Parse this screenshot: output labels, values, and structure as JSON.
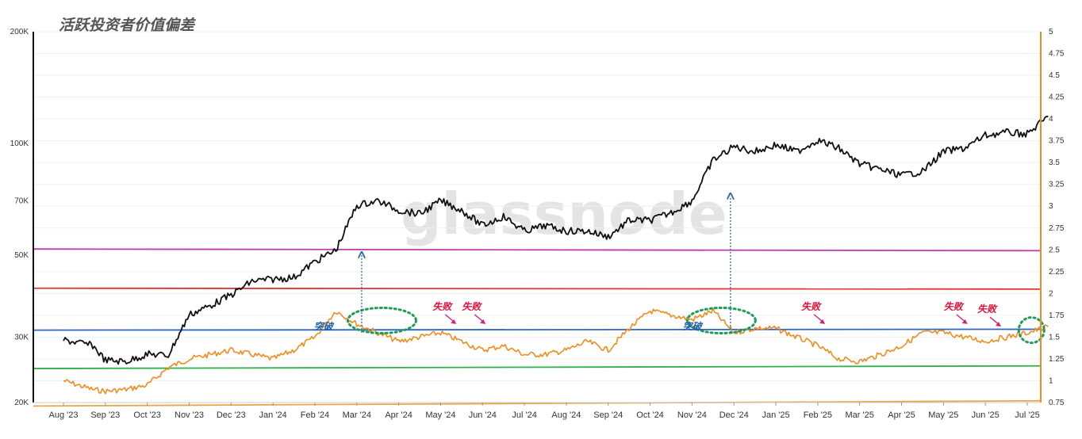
{
  "title": "活跃投资者价值偏差",
  "watermark": "glassnode",
  "chart_data": {
    "type": "line",
    "x_labels": [
      "Aug '23",
      "Sep '23",
      "Oct '23",
      "Nov '23",
      "Dec '23",
      "Jan '24",
      "Feb '24",
      "Mar '24",
      "Apr '24",
      "May '24",
      "Jun '24",
      "Jul '24",
      "Aug '24",
      "Sep '24",
      "Oct '24",
      "Nov '24",
      "Dec '24",
      "Jan '25",
      "Feb '25",
      "Mar '25",
      "Apr '25",
      "May '25",
      "Jun '25",
      "Jul '25"
    ],
    "y_left": {
      "scale": "log",
      "ticks": [
        20000,
        30000,
        50000,
        70000,
        100000,
        200000
      ],
      "tick_labels": [
        "20K",
        "30K",
        "50K",
        "70K",
        "100K",
        "200K"
      ]
    },
    "y_right": {
      "scale": "linear",
      "range": [
        0.75,
        5
      ],
      "ticks": [
        0.75,
        1,
        1.25,
        1.5,
        1.75,
        2,
        2.25,
        2.5,
        2.75,
        3,
        3.25,
        3.5,
        3.75,
        4,
        4.25,
        4.5,
        4.75,
        5
      ],
      "tick_labels": [
        "0.75",
        "1",
        "1.25",
        "1.5",
        "1.75",
        "2",
        "2.25",
        "2.5",
        "2.75",
        "3",
        "3.25",
        "3.5",
        "3.75",
        "4",
        "4.25",
        "4.5",
        "4.75",
        "5"
      ]
    },
    "price": {
      "axis": "left",
      "color": "#111111",
      "x": [
        0,
        0.7,
        1,
        1.5,
        2,
        2.5,
        3,
        3.5,
        4,
        4.5,
        5,
        5.5,
        6,
        6.5,
        7,
        7.5,
        8,
        8.5,
        9,
        9.5,
        10,
        10.5,
        11,
        11.5,
        12,
        12.5,
        13,
        13.5,
        14,
        14.5,
        15,
        15.5,
        16,
        16.5,
        17,
        17.5,
        18,
        18.5,
        19,
        19.5,
        20,
        20.5,
        21,
        21.5,
        22,
        22.5,
        23,
        23.5
      ],
      "values": [
        29500,
        28500,
        26000,
        25800,
        27000,
        26800,
        34500,
        36500,
        39000,
        42500,
        43000,
        43500,
        48000,
        51500,
        68000,
        70000,
        66000,
        64500,
        70000,
        66000,
        60000,
        63500,
        58000,
        60000,
        58000,
        58000,
        56000,
        62000,
        62000,
        65000,
        70000,
        90000,
        98000,
        95000,
        99000,
        95000,
        102000,
        97000,
        88000,
        85000,
        82000,
        84000,
        95000,
        97000,
        105000,
        107000,
        106000,
        118000
      ]
    },
    "ratio": {
      "axis": "right",
      "color": "#f28c1e",
      "x": [
        0,
        0.7,
        1,
        1.5,
        2,
        2.5,
        3,
        3.5,
        4,
        4.5,
        5,
        5.5,
        6,
        6.5,
        7,
        7.5,
        8,
        8.5,
        9,
        9.5,
        10,
        10.5,
        11,
        11.5,
        12,
        12.5,
        13,
        13.5,
        14,
        14.5,
        15,
        15.5,
        16,
        16.5,
        17,
        17.5,
        18,
        18.5,
        19,
        19.5,
        20,
        20.5,
        21,
        21.5,
        22,
        22.5,
        23,
        23.5
      ],
      "values": [
        1.0,
        0.9,
        0.88,
        0.9,
        0.95,
        1.15,
        1.25,
        1.3,
        1.35,
        1.3,
        1.25,
        1.35,
        1.5,
        1.8,
        1.65,
        1.55,
        1.45,
        1.5,
        1.55,
        1.45,
        1.35,
        1.4,
        1.3,
        1.3,
        1.35,
        1.45,
        1.35,
        1.6,
        1.8,
        1.75,
        1.7,
        1.8,
        1.55,
        1.6,
        1.6,
        1.5,
        1.4,
        1.25,
        1.22,
        1.3,
        1.4,
        1.55,
        1.55,
        1.5,
        1.45,
        1.5,
        1.55,
        1.62
      ]
    },
    "bands": [
      {
        "color": "#c03ab3",
        "axis": "right",
        "x": [
          0,
          23.5
        ],
        "values": [
          2.51,
          2.49
        ]
      },
      {
        "color": "#e23636",
        "axis": "right",
        "x": [
          0,
          23.5
        ],
        "values": [
          2.06,
          2.05
        ]
      },
      {
        "color": "#2e64c5",
        "axis": "right",
        "x": [
          0,
          23.5
        ],
        "values": [
          1.58,
          1.59
        ]
      },
      {
        "color": "#2bb04a",
        "axis": "right",
        "x": [
          0,
          23.5
        ],
        "values": [
          1.14,
          1.17
        ]
      },
      {
        "color": "#e8a84a",
        "axis": "right",
        "x": [
          0,
          23.5
        ],
        "values": [
          0.71,
          0.77
        ]
      }
    ],
    "annotations": [
      {
        "text": "突破",
        "kind": "breakout",
        "x": 6.7,
        "y": 1.65,
        "arrow_to_price": 50000
      },
      {
        "text": "突破",
        "kind": "breakout",
        "x": 15.5,
        "y": 1.65,
        "arrow_to_price": 72000
      },
      {
        "text": "失败",
        "kind": "fail",
        "x": 9.3,
        "y": 1.85
      },
      {
        "text": "失败",
        "kind": "fail",
        "x": 10.0,
        "y": 1.85
      },
      {
        "text": "失败",
        "kind": "fail",
        "x": 18.1,
        "y": 1.85
      },
      {
        "text": "失败",
        "kind": "fail",
        "x": 21.5,
        "y": 1.85
      },
      {
        "text": "失败",
        "kind": "fail",
        "x": 22.3,
        "y": 1.82
      }
    ],
    "highlights": [
      {
        "x": 7.6,
        "y": 1.69
      },
      {
        "x": 15.7,
        "y": 1.69
      },
      {
        "x": 23.1,
        "y": 1.58
      }
    ]
  }
}
